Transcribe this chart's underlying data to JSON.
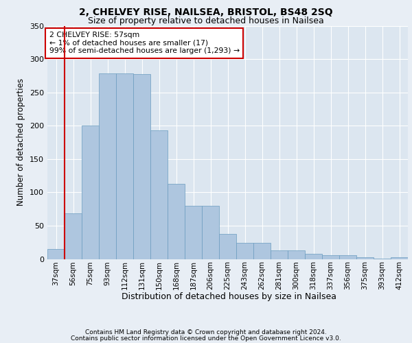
{
  "title_line1": "2, CHELVEY RISE, NAILSEA, BRISTOL, BS48 2SQ",
  "title_line2": "Size of property relative to detached houses in Nailsea",
  "xlabel": "Distribution of detached houses by size in Nailsea",
  "ylabel": "Number of detached properties",
  "footer_line1": "Contains HM Land Registry data © Crown copyright and database right 2024.",
  "footer_line2": "Contains public sector information licensed under the Open Government Licence v3.0.",
  "annotation_line1": "2 CHELVEY RISE: 57sqm",
  "annotation_line2": "← 1% of detached houses are smaller (17)",
  "annotation_line3": "99% of semi-detached houses are larger (1,293) →",
  "bar_color": "#aec6df",
  "bar_edge_color": "#6a9cbf",
  "red_line_color": "#cc0000",
  "annotation_box_color": "#cc0000",
  "background_color": "#e8eef5",
  "plot_bg_color": "#dce6f0",
  "grid_color": "#ffffff",
  "categories": [
    "37sqm",
    "56sqm",
    "75sqm",
    "93sqm",
    "112sqm",
    "131sqm",
    "150sqm",
    "168sqm",
    "187sqm",
    "206sqm",
    "225sqm",
    "243sqm",
    "262sqm",
    "281sqm",
    "300sqm",
    "318sqm",
    "337sqm",
    "356sqm",
    "375sqm",
    "393sqm",
    "412sqm"
  ],
  "values": [
    15,
    68,
    200,
    278,
    278,
    277,
    193,
    113,
    80,
    80,
    38,
    24,
    24,
    13,
    13,
    8,
    6,
    6,
    3,
    1,
    3
  ],
  "red_line_x": 0.5,
  "ylim": [
    0,
    350
  ],
  "yticks": [
    0,
    50,
    100,
    150,
    200,
    250,
    300,
    350
  ]
}
